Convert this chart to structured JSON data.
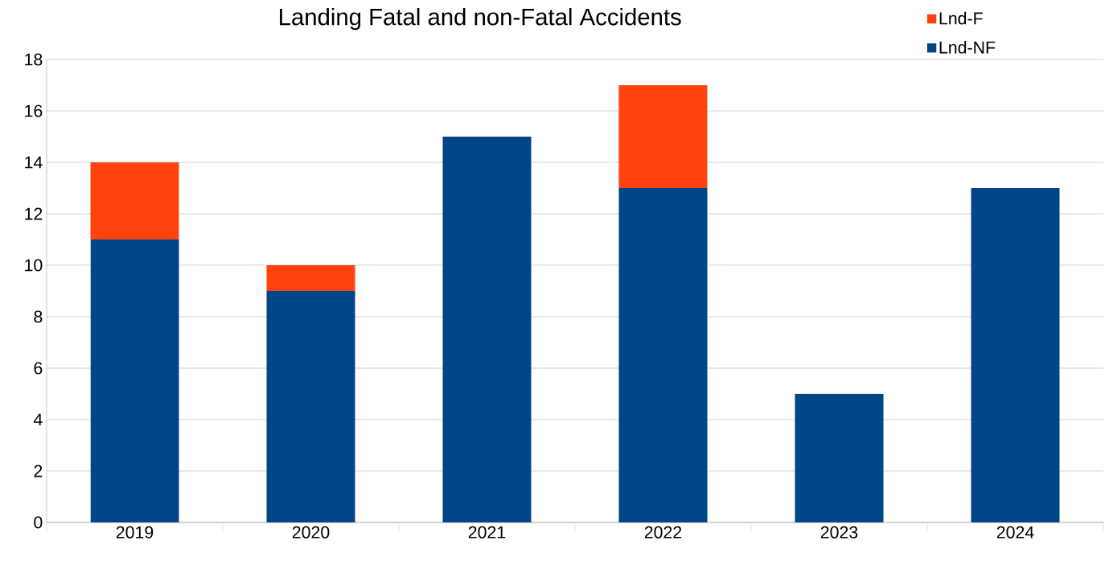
{
  "chart_data": {
    "type": "bar",
    "title": "Landing Fatal and non-Fatal Accidents",
    "categories": [
      "2019",
      "2020",
      "2021",
      "2022",
      "2023",
      "2024"
    ],
    "series": [
      {
        "name": "Lnd-NF",
        "color": "#004586",
        "values": [
          11,
          9,
          15,
          13,
          5,
          13
        ]
      },
      {
        "name": "Lnd-F",
        "color": "#ff420e",
        "values": [
          3,
          1,
          0,
          4,
          0,
          0
        ]
      }
    ],
    "stacked": true,
    "ylim": [
      0,
      18
    ],
    "yticks": [
      0,
      2,
      4,
      6,
      8,
      10,
      12,
      14,
      16,
      18
    ],
    "grid": "y",
    "legend": "top right"
  }
}
